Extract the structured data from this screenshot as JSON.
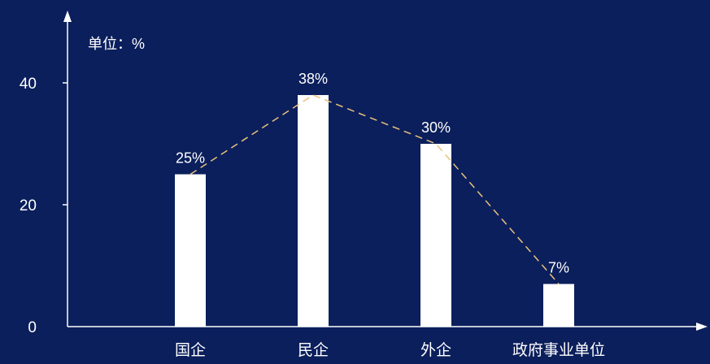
{
  "colors": {
    "background": "#0b1f5c",
    "bar": "#ffffff",
    "axis": "#ffffff",
    "trend_line": "#e8c27a",
    "text": "#ffffff"
  },
  "chart_data": {
    "type": "bar",
    "title": "",
    "xlabel": "",
    "ylabel": "单位：%",
    "ylim": [
      0,
      50
    ],
    "yticks": [
      0,
      20,
      40
    ],
    "categories": [
      "国企",
      "民企",
      "外企",
      "政府事业单位"
    ],
    "values": [
      25,
      38,
      30,
      7
    ],
    "data_labels": [
      "25%",
      "38%",
      "30%",
      "7%"
    ],
    "trend_line": {
      "style": "dashed",
      "connects": "bar tops"
    },
    "grid": false,
    "legend": "none"
  }
}
